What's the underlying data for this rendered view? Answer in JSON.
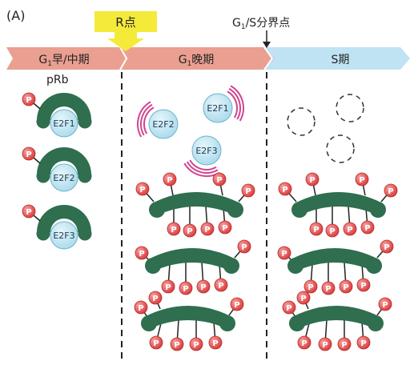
{
  "figure_label": "(A)",
  "r_point": {
    "label": "R点"
  },
  "g1s_boundary": {
    "label_base": "G",
    "label_sub": "1",
    "label_rest": "/S分界点"
  },
  "phases": [
    {
      "label_base": "G",
      "label_sub": "1",
      "label_rest": "早/中期"
    },
    {
      "label_base": "G",
      "label_sub": "1",
      "label_rest": "晚期"
    },
    {
      "label_base": "",
      "label_sub": "",
      "label_rest": "S期"
    }
  ],
  "prb_label": "pRb",
  "phospho_label": "P",
  "early_complexes": [
    "E2F1",
    "E2F2",
    "E2F3"
  ],
  "free_e2f": [
    "E2F2",
    "E2F1",
    "E2F3"
  ],
  "colors": {
    "phase_early": "#ea9f90",
    "phase_s": "#bfe3f2",
    "arrow_yellow": "#f4ea3a",
    "prb_green": "#2f6e4e",
    "e2f_fill": "#bde4f0",
    "e2f_stroke": "#6bb3cf",
    "p_fill": "#e04a4a",
    "magenta": "#d0458f"
  }
}
